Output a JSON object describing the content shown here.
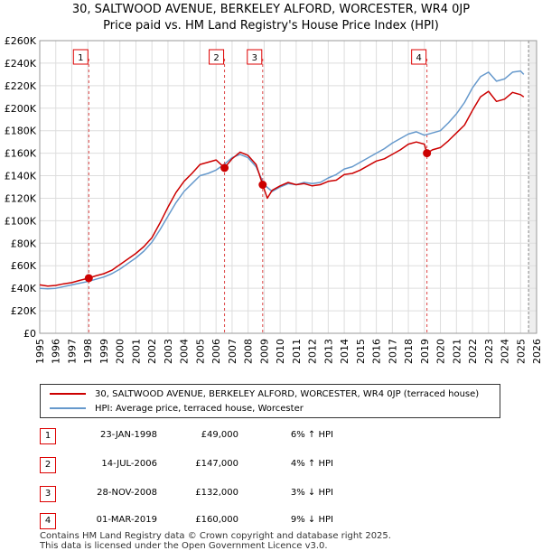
{
  "chart_data": {
    "type": "line",
    "title_line1": "30, SALTWOOD AVENUE, BERKELEY ALFORD, WORCESTER, WR4 0JP",
    "title_line2": "Price paid vs. HM Land Registry's House Price Index (HPI)",
    "xlim": [
      1995,
      2026
    ],
    "ylim": [
      0,
      260000
    ],
    "y_ticks": [
      0,
      20000,
      40000,
      60000,
      80000,
      100000,
      120000,
      140000,
      160000,
      180000,
      200000,
      220000,
      240000,
      260000
    ],
    "y_tick_labels": [
      "£0",
      "£20K",
      "£40K",
      "£60K",
      "£80K",
      "£100K",
      "£120K",
      "£140K",
      "£160K",
      "£180K",
      "£200K",
      "£220K",
      "£240K",
      "£260K"
    ],
    "x_ticks": [
      1995,
      1996,
      1997,
      1998,
      1999,
      2000,
      2001,
      2002,
      2003,
      2004,
      2005,
      2006,
      2007,
      2008,
      2009,
      2010,
      2011,
      2012,
      2013,
      2014,
      2015,
      2016,
      2017,
      2018,
      2019,
      2020,
      2021,
      2022,
      2023,
      2024,
      2025,
      2026
    ],
    "x_tick_labels": [
      "1995",
      "1996",
      "1997",
      "1998",
      "1999",
      "2000",
      "2001",
      "2002",
      "2003",
      "2004",
      "2005",
      "2006",
      "2007",
      "2008",
      "2009",
      "2010",
      "2011",
      "2012",
      "2013",
      "2014",
      "2015",
      "2016",
      "2017",
      "2018",
      "2019",
      "2020",
      "2021",
      "2022",
      "2023",
      "2024",
      "2025",
      "2026"
    ],
    "grid": true,
    "forecast_start": 2025.5,
    "series": [
      {
        "name": "30, SALTWOOD AVENUE, BERKELEY ALFORD, WORCESTER, WR4 0JP (terraced house)",
        "color": "#cc0000",
        "x": [
          1995.0,
          1995.5,
          1996.0,
          1996.5,
          1997.0,
          1997.5,
          1998.06,
          1998.5,
          1999.0,
          1999.5,
          2000.0,
          2000.5,
          2001.0,
          2001.5,
          2002.0,
          2002.5,
          2003.0,
          2003.5,
          2004.0,
          2004.5,
          2005.0,
          2005.5,
          2006.0,
          2006.53,
          2007.0,
          2007.5,
          2008.0,
          2008.5,
          2008.91,
          2009.2,
          2009.5,
          2010.0,
          2010.5,
          2011.0,
          2011.5,
          2012.0,
          2012.5,
          2013.0,
          2013.5,
          2014.0,
          2014.5,
          2015.0,
          2015.5,
          2016.0,
          2016.5,
          2017.0,
          2017.5,
          2018.0,
          2018.5,
          2019.0,
          2019.16,
          2019.5,
          2020.0,
          2020.5,
          2021.0,
          2021.5,
          2022.0,
          2022.5,
          2023.0,
          2023.5,
          2024.0,
          2024.5,
          2025.0,
          2025.2
        ],
        "y": [
          43000,
          42000,
          42500,
          44000,
          45000,
          47000,
          49000,
          51000,
          53000,
          56000,
          61000,
          66000,
          71000,
          77000,
          85000,
          98000,
          112000,
          125000,
          135000,
          142000,
          150000,
          152000,
          154000,
          147000,
          155000,
          161000,
          158000,
          150000,
          132000,
          120000,
          127000,
          131000,
          134000,
          132000,
          133000,
          131000,
          132000,
          135000,
          136000,
          141000,
          142000,
          145000,
          149000,
          153000,
          155000,
          159000,
          163000,
          168000,
          170000,
          168000,
          160000,
          163000,
          165000,
          171000,
          178000,
          185000,
          198000,
          210000,
          215000,
          206000,
          208000,
          214000,
          212000,
          210000
        ]
      },
      {
        "name": "HPI: Average price, terraced house, Worcester",
        "color": "#6699cc",
        "x": [
          1995.0,
          1995.5,
          1996.0,
          1996.5,
          1997.0,
          1997.5,
          1998.0,
          1998.5,
          1999.0,
          1999.5,
          2000.0,
          2000.5,
          2001.0,
          2001.5,
          2002.0,
          2002.5,
          2003.0,
          2003.5,
          2004.0,
          2004.5,
          2005.0,
          2005.5,
          2006.0,
          2006.5,
          2007.0,
          2007.5,
          2008.0,
          2008.5,
          2009.0,
          2009.5,
          2010.0,
          2010.5,
          2011.0,
          2011.5,
          2012.0,
          2012.5,
          2013.0,
          2013.5,
          2014.0,
          2014.5,
          2015.0,
          2015.5,
          2016.0,
          2016.5,
          2017.0,
          2017.5,
          2018.0,
          2018.5,
          2019.0,
          2019.5,
          2020.0,
          2020.5,
          2021.0,
          2021.5,
          2022.0,
          2022.5,
          2023.0,
          2023.5,
          2024.0,
          2024.5,
          2025.0,
          2025.2
        ],
        "y": [
          40000,
          39500,
          40000,
          41500,
          43000,
          44500,
          46000,
          48000,
          50000,
          53000,
          57000,
          62000,
          67000,
          73000,
          81000,
          92000,
          104000,
          116000,
          126000,
          133000,
          140000,
          142000,
          145000,
          150000,
          156000,
          159000,
          156000,
          148000,
          132000,
          126000,
          130000,
          133000,
          132000,
          134000,
          133000,
          134000,
          138000,
          141000,
          146000,
          148000,
          152000,
          156000,
          160000,
          164000,
          169000,
          173000,
          177000,
          179000,
          176000,
          178000,
          180000,
          187000,
          195000,
          205000,
          218000,
          228000,
          232000,
          224000,
          226000,
          232000,
          233000,
          230000
        ]
      }
    ],
    "sales": [
      {
        "num": "1",
        "x": 1998.06,
        "price": 49000,
        "date": "23-JAN-1998",
        "price_label": "£49,000",
        "hpi": "6% ↑ HPI"
      },
      {
        "num": "2",
        "x": 2006.53,
        "price": 147000,
        "date": "14-JUL-2006",
        "price_label": "£147,000",
        "hpi": "4% ↑ HPI"
      },
      {
        "num": "3",
        "x": 2008.91,
        "price": 132000,
        "date": "28-NOV-2008",
        "price_label": "£132,000",
        "hpi": "3% ↓ HPI"
      },
      {
        "num": "4",
        "x": 2019.16,
        "price": 160000,
        "date": "01-MAR-2019",
        "price_label": "£160,000",
        "hpi": "9% ↓ HPI"
      }
    ],
    "legend": {
      "property": "30, SALTWOOD AVENUE, BERKELEY ALFORD, WORCESTER, WR4 0JP (terraced house)",
      "hpi": "HPI: Average price, terraced house, Worcester"
    }
  },
  "footer": {
    "line1": "Contains HM Land Registry data © Crown copyright and database right 2025.",
    "line2": "This data is licensed under the Open Government Licence v3.0."
  }
}
